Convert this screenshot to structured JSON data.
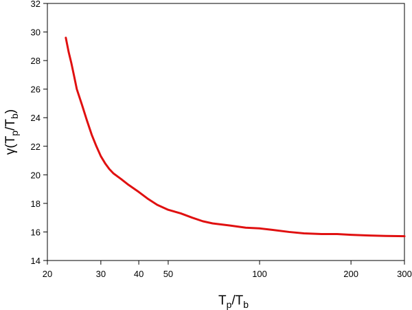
{
  "chart_data": {
    "type": "line",
    "xscale": "log",
    "xlabel": {
      "base": "T",
      "sub1": "p",
      "mid": "/T",
      "sub2": "b"
    },
    "ylabel": {
      "prefix": "γ(T",
      "sub1": "p",
      "mid": "/T",
      "sub2": "b",
      "suffix": ")"
    },
    "xlim": [
      20,
      300
    ],
    "ylim": [
      14,
      32
    ],
    "xticks": [
      20,
      30,
      40,
      50,
      100,
      200,
      300
    ],
    "xtick_labels": [
      "20",
      "30",
      "40",
      "50",
      "100",
      "200",
      "300"
    ],
    "yticks": [
      14,
      16,
      18,
      20,
      22,
      24,
      26,
      28,
      30,
      32
    ],
    "ytick_labels": [
      "14",
      "16",
      "18",
      "20",
      "22",
      "24",
      "26",
      "28",
      "30",
      "32"
    ],
    "line_color": "#e01010",
    "series": [
      {
        "x": [
          23.0,
          23.5,
          24.0,
          24.5,
          25.0,
          26.0,
          27.0,
          28.0,
          29.0,
          30.0,
          31.0,
          32.0,
          33.0,
          35.0,
          37.0,
          40.0,
          43.0,
          46.0,
          50.0,
          55.0,
          60.0,
          65.0,
          70.0,
          80.0,
          90.0,
          100.0,
          110.0,
          125.0,
          140.0,
          160.0,
          180.0,
          200.0,
          230.0,
          260.0,
          300.0
        ],
        "y": [
          29.6,
          28.6,
          27.8,
          26.9,
          26.0,
          24.9,
          23.8,
          22.8,
          22.0,
          21.3,
          20.8,
          20.4,
          20.1,
          19.7,
          19.3,
          18.8,
          18.3,
          17.9,
          17.55,
          17.3,
          17.0,
          16.75,
          16.6,
          16.45,
          16.3,
          16.25,
          16.15,
          16.0,
          15.9,
          15.85,
          15.85,
          15.8,
          15.75,
          15.72,
          15.7
        ]
      }
    ]
  }
}
